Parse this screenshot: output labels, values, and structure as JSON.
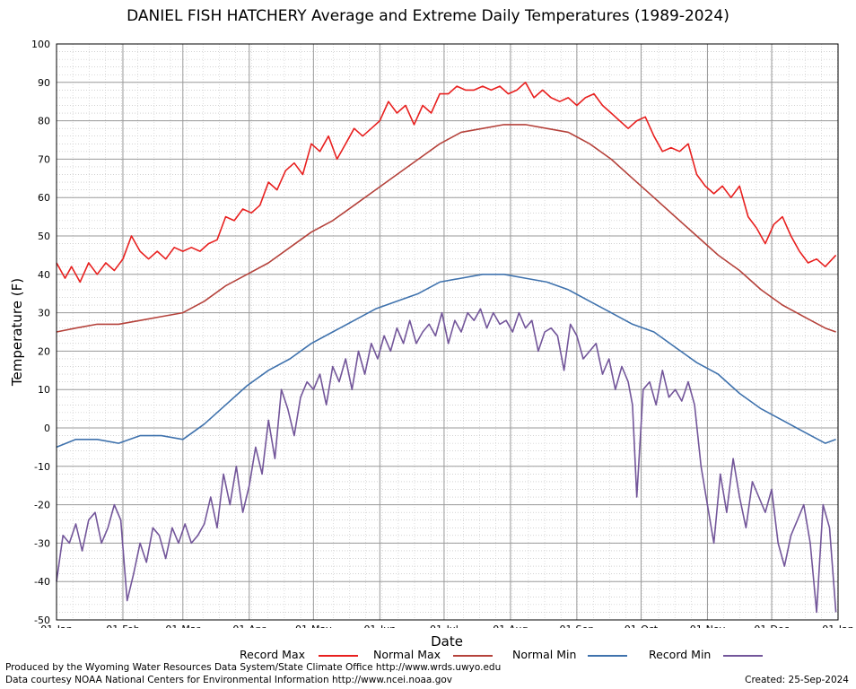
{
  "title": "DANIEL FISH HATCHERY Average and Extreme Daily Temperatures (1989-2024)",
  "footer_produced": "Produced by the Wyoming Water Resources Data System/State Climate Office http://www.wrds.uwyo.edu",
  "footer_courtesy": "Data courtesy NOAA National Centers for Environmental Information http://www.ncei.noaa.gov",
  "footer_created": "Created:  25-Sep-2024",
  "chart_data": {
    "type": "line",
    "title": "DANIEL FISH HATCHERY Average and Extreme Daily Temperatures (1989-2024)",
    "xlabel": "Date",
    "ylabel": "Temperature (F)",
    "ylim": [
      -50,
      100
    ],
    "yticks": [
      100,
      90,
      80,
      70,
      60,
      50,
      40,
      30,
      20,
      10,
      0,
      -10,
      -20,
      -30,
      -40,
      -50
    ],
    "xticks": [
      "01-Jan",
      "01-Feb",
      "01-Mar",
      "01-Apr",
      "01-May",
      "01-Jun",
      "01-Jul",
      "01-Aug",
      "01-Sep",
      "01-Oct",
      "01-Nov",
      "01-Dec",
      "01-Jan"
    ],
    "xtick_days": [
      1,
      32,
      60,
      91,
      121,
      152,
      182,
      213,
      244,
      274,
      305,
      335,
      366
    ],
    "grid": true,
    "legend_position": "bottom",
    "series": [
      {
        "name": "Record Max",
        "color": "#e8201f",
        "x": [
          1,
          5,
          8,
          12,
          16,
          20,
          24,
          28,
          32,
          36,
          40,
          44,
          48,
          52,
          56,
          60,
          64,
          68,
          72,
          76,
          80,
          84,
          88,
          92,
          96,
          100,
          104,
          108,
          112,
          116,
          120,
          124,
          128,
          132,
          136,
          140,
          144,
          148,
          152,
          156,
          160,
          164,
          168,
          172,
          176,
          180,
          184,
          188,
          192,
          196,
          200,
          204,
          208,
          212,
          216,
          220,
          224,
          228,
          232,
          236,
          240,
          244,
          248,
          252,
          256,
          260,
          264,
          268,
          272,
          276,
          280,
          284,
          288,
          292,
          296,
          300,
          304,
          308,
          312,
          316,
          320,
          324,
          328,
          332,
          336,
          340,
          344,
          348,
          352,
          356,
          360,
          365
        ],
        "y": [
          43,
          39,
          42,
          38,
          43,
          40,
          43,
          41,
          44,
          50,
          46,
          44,
          46,
          44,
          47,
          46,
          47,
          46,
          48,
          49,
          55,
          54,
          57,
          56,
          58,
          64,
          62,
          67,
          69,
          66,
          74,
          72,
          76,
          70,
          74,
          78,
          76,
          78,
          80,
          85,
          82,
          84,
          79,
          84,
          82,
          87,
          87,
          89,
          88,
          88,
          89,
          88,
          89,
          87,
          88,
          90,
          86,
          88,
          86,
          85,
          86,
          84,
          86,
          87,
          84,
          82,
          80,
          78,
          80,
          81,
          76,
          72,
          73,
          72,
          74,
          66,
          63,
          61,
          63,
          60,
          63,
          55,
          52,
          48,
          53,
          55,
          50,
          46,
          43,
          44,
          42,
          45
        ]
      },
      {
        "name": "Normal Max",
        "color": "#b5423b",
        "x": [
          1,
          10,
          20,
          30,
          40,
          50,
          60,
          70,
          80,
          90,
          100,
          110,
          120,
          130,
          140,
          150,
          160,
          170,
          180,
          190,
          200,
          210,
          220,
          230,
          240,
          250,
          260,
          270,
          280,
          290,
          300,
          310,
          320,
          330,
          340,
          350,
          360,
          365
        ],
        "y": [
          25,
          26,
          27,
          27,
          28,
          29,
          30,
          33,
          37,
          40,
          43,
          47,
          51,
          54,
          58,
          62,
          66,
          70,
          74,
          77,
          78,
          79,
          79,
          78,
          77,
          74,
          70,
          65,
          60,
          55,
          50,
          45,
          41,
          36,
          32,
          29,
          26,
          25
        ]
      },
      {
        "name": "Normal Min",
        "color": "#3f72ad",
        "x": [
          1,
          10,
          20,
          30,
          40,
          50,
          60,
          70,
          80,
          90,
          100,
          110,
          120,
          130,
          140,
          150,
          160,
          170,
          180,
          190,
          200,
          210,
          220,
          230,
          240,
          250,
          260,
          270,
          280,
          290,
          300,
          310,
          320,
          330,
          340,
          350,
          360,
          365
        ],
        "y": [
          -5,
          -3,
          -3,
          -4,
          -2,
          -2,
          -3,
          1,
          6,
          11,
          15,
          18,
          22,
          25,
          28,
          31,
          33,
          35,
          38,
          39,
          40,
          40,
          39,
          38,
          36,
          33,
          30,
          27,
          25,
          21,
          17,
          14,
          9,
          5,
          2,
          -1,
          -4,
          -3
        ]
      },
      {
        "name": "Record Min",
        "color": "#73569a",
        "x": [
          1,
          4,
          7,
          10,
          13,
          16,
          19,
          22,
          25,
          28,
          31,
          34,
          37,
          40,
          43,
          46,
          49,
          52,
          55,
          58,
          61,
          64,
          67,
          70,
          73,
          76,
          79,
          82,
          85,
          88,
          91,
          94,
          97,
          100,
          103,
          106,
          109,
          112,
          115,
          118,
          121,
          124,
          127,
          130,
          133,
          136,
          139,
          142,
          145,
          148,
          151,
          154,
          157,
          160,
          163,
          166,
          169,
          172,
          175,
          178,
          181,
          184,
          187,
          190,
          193,
          196,
          199,
          202,
          205,
          208,
          211,
          214,
          217,
          220,
          223,
          226,
          229,
          232,
          235,
          238,
          241,
          244,
          247,
          250,
          253,
          256,
          259,
          262,
          265,
          268,
          270,
          272,
          275,
          278,
          281,
          284,
          287,
          290,
          293,
          296,
          299,
          302,
          305,
          308,
          311,
          314,
          317,
          320,
          323,
          326,
          329,
          332,
          335,
          338,
          341,
          344,
          347,
          350,
          353,
          356,
          359,
          362,
          365
        ],
        "y": [
          -40,
          -28,
          -30,
          -25,
          -32,
          -24,
          -22,
          -30,
          -26,
          -20,
          -24,
          -45,
          -38,
          -30,
          -35,
          -26,
          -28,
          -34,
          -26,
          -30,
          -25,
          -30,
          -28,
          -25,
          -18,
          -26,
          -12,
          -20,
          -10,
          -22,
          -15,
          -5,
          -12,
          2,
          -8,
          10,
          5,
          -2,
          8,
          12,
          10,
          14,
          6,
          16,
          12,
          18,
          10,
          20,
          14,
          22,
          18,
          24,
          20,
          26,
          22,
          28,
          22,
          25,
          27,
          24,
          30,
          22,
          28,
          25,
          30,
          28,
          31,
          26,
          30,
          27,
          28,
          25,
          30,
          26,
          28,
          20,
          25,
          26,
          24,
          15,
          27,
          24,
          18,
          20,
          22,
          14,
          18,
          10,
          16,
          12,
          6,
          -18,
          10,
          12,
          6,
          15,
          8,
          10,
          7,
          12,
          6,
          -10,
          -20,
          -30,
          -12,
          -22,
          -8,
          -18,
          -26,
          -14,
          -18,
          -22,
          -16,
          -30,
          -36,
          -28,
          -24,
          -20,
          -30,
          -48,
          -20,
          -26,
          -48
        ]
      }
    ]
  }
}
